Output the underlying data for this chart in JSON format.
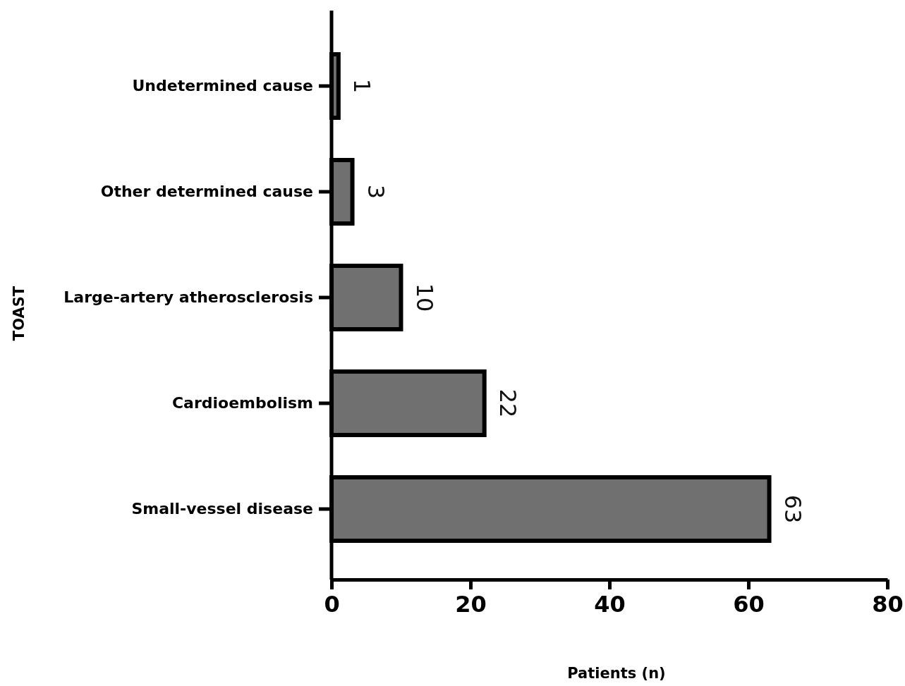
{
  "chart_data": {
    "type": "bar",
    "orientation": "horizontal",
    "xlabel": "Patients (n)",
    "ylabel": "TOAST",
    "categories": [
      "Undetermined cause",
      "Other determined cause",
      "Large-artery atherosclerosis",
      "Cardioembolism",
      "Small-vessel disease"
    ],
    "values": [
      1,
      3,
      10,
      22,
      63
    ],
    "color": "#707070",
    "xlim": [
      0,
      80
    ],
    "xticks": [
      0,
      20,
      40,
      60,
      80
    ],
    "grid": false,
    "data_labels": true
  }
}
